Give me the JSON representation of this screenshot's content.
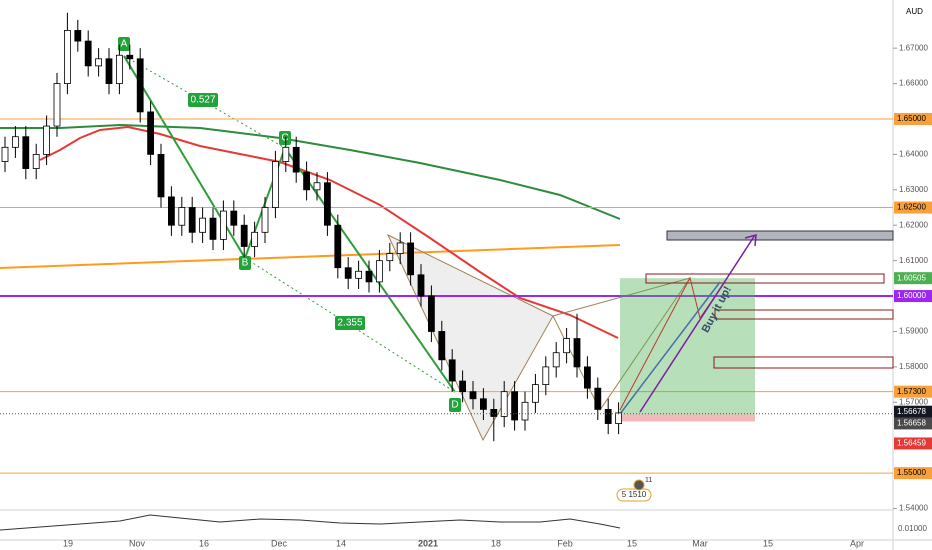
{
  "chart_data": {
    "type": "candlestick",
    "currency": "AUD",
    "up_color": "#ffffff",
    "down_color": "#000000",
    "ylim": [
      1.541,
      1.6836
    ],
    "yticks": [
      {
        "value": 1.67,
        "label": "1.67000"
      },
      {
        "value": 1.66,
        "label": "1.66000"
      },
      {
        "value": 1.64,
        "label": "1.64000"
      },
      {
        "value": 1.63,
        "label": "1.63000"
      },
      {
        "value": 1.62,
        "label": "1.62000"
      },
      {
        "value": 1.61,
        "label": "1.61000"
      },
      {
        "value": 1.59,
        "label": "1.59000"
      },
      {
        "value": 1.58,
        "label": "1.58000"
      },
      {
        "value": 1.57,
        "label": "1.57000"
      },
      {
        "value": 1.54,
        "label": "1.54000"
      }
    ],
    "x_labels": [
      "19",
      "Nov",
      "16",
      "Dec",
      "14",
      "2021",
      "18",
      "Feb",
      "15",
      "Mar",
      "15",
      "Apr"
    ],
    "open": [
      1.638,
      1.642,
      1.645,
      1.636,
      1.64,
      1.648,
      1.66,
      1.675,
      1.672,
      1.665,
      1.667,
      1.66,
      1.668,
      1.667,
      1.652,
      1.64,
      1.628,
      1.62,
      1.625,
      1.618,
      1.622,
      1.616,
      1.624,
      1.62,
      1.614,
      1.618,
      1.625,
      1.638,
      1.642,
      1.635,
      1.63,
      1.632,
      1.62,
      1.608,
      1.605,
      1.607,
      1.604,
      1.61,
      1.612,
      1.615,
      1.606,
      1.6,
      1.59,
      1.582,
      1.576,
      1.573,
      1.571,
      1.568,
      1.566,
      1.573,
      1.565,
      1.57,
      1.575,
      1.58,
      1.584,
      1.588,
      1.58,
      1.574,
      1.568,
      1.564
    ],
    "high": [
      1.645,
      1.648,
      1.648,
      1.643,
      1.651,
      1.663,
      1.68,
      1.678,
      1.675,
      1.67,
      1.67,
      1.671,
      1.671,
      1.67,
      1.655,
      1.643,
      1.631,
      1.628,
      1.628,
      1.625,
      1.625,
      1.627,
      1.627,
      1.623,
      1.621,
      1.628,
      1.641,
      1.645,
      1.645,
      1.638,
      1.635,
      1.635,
      1.623,
      1.611,
      1.61,
      1.61,
      1.613,
      1.615,
      1.618,
      1.618,
      1.609,
      1.603,
      1.593,
      1.585,
      1.579,
      1.576,
      1.574,
      1.571,
      1.576,
      1.576,
      1.573,
      1.578,
      1.583,
      1.587,
      1.591,
      1.595,
      1.583,
      1.577,
      1.571,
      1.57
    ],
    "low": [
      1.635,
      1.639,
      1.633,
      1.633,
      1.637,
      1.645,
      1.657,
      1.669,
      1.662,
      1.662,
      1.657,
      1.657,
      1.664,
      1.649,
      1.637,
      1.625,
      1.617,
      1.617,
      1.615,
      1.615,
      1.613,
      1.613,
      1.617,
      1.611,
      1.611,
      1.615,
      1.622,
      1.635,
      1.632,
      1.627,
      1.627,
      1.617,
      1.605,
      1.602,
      1.602,
      1.601,
      1.601,
      1.607,
      1.609,
      1.603,
      1.597,
      1.587,
      1.579,
      1.573,
      1.57,
      1.568,
      1.565,
      1.559,
      1.563,
      1.562,
      1.562,
      1.567,
      1.572,
      1.577,
      1.581,
      1.577,
      1.571,
      1.565,
      1.561,
      1.561
    ],
    "close": [
      1.642,
      1.645,
      1.636,
      1.64,
      1.648,
      1.66,
      1.675,
      1.672,
      1.665,
      1.667,
      1.66,
      1.668,
      1.667,
      1.652,
      1.64,
      1.628,
      1.62,
      1.625,
      1.618,
      1.622,
      1.616,
      1.624,
      1.62,
      1.614,
      1.618,
      1.625,
      1.638,
      1.642,
      1.635,
      1.63,
      1.632,
      1.62,
      1.608,
      1.605,
      1.607,
      1.604,
      1.61,
      1.612,
      1.615,
      1.606,
      1.6,
      1.59,
      1.582,
      1.576,
      1.573,
      1.571,
      1.568,
      1.566,
      1.573,
      1.565,
      1.57,
      1.575,
      1.58,
      1.584,
      1.588,
      1.58,
      1.574,
      1.568,
      1.564,
      1.567
    ],
    "hlines": [
      {
        "value": 1.65,
        "label": "1.65000",
        "color": "#f7a03c"
      },
      {
        "value": 1.625,
        "label": "1.62500",
        "color": "#f7a03c"
      },
      {
        "value": 1.6,
        "label": "1.60000",
        "color": "#9c27f0"
      },
      {
        "value": 1.573,
        "label": "1.57300",
        "color": "#f7a03c"
      },
      {
        "value": 1.55,
        "label": "1.55000",
        "color": "#f7a03c"
      }
    ],
    "price_tags": [
      {
        "value": 1.60505,
        "label": "1.60505",
        "color": "#4caf50"
      },
      {
        "value": 1.56678,
        "label": "1.56678",
        "color": "#131722"
      },
      {
        "value": 1.56658,
        "label": "1.56658",
        "color": "#4a4a4a"
      },
      {
        "value": 1.56459,
        "label": "1.56459",
        "color": "#e53935"
      }
    ],
    "position": {
      "target": 1.60505,
      "entry": 1.56658,
      "stop": 1.56459
    },
    "annotations": [
      "A",
      "B",
      "C",
      "D",
      "0.527",
      "2.355",
      "Buy it up!",
      "5 1510",
      "11"
    ],
    "lower_pane_label": "0.01000"
  }
}
